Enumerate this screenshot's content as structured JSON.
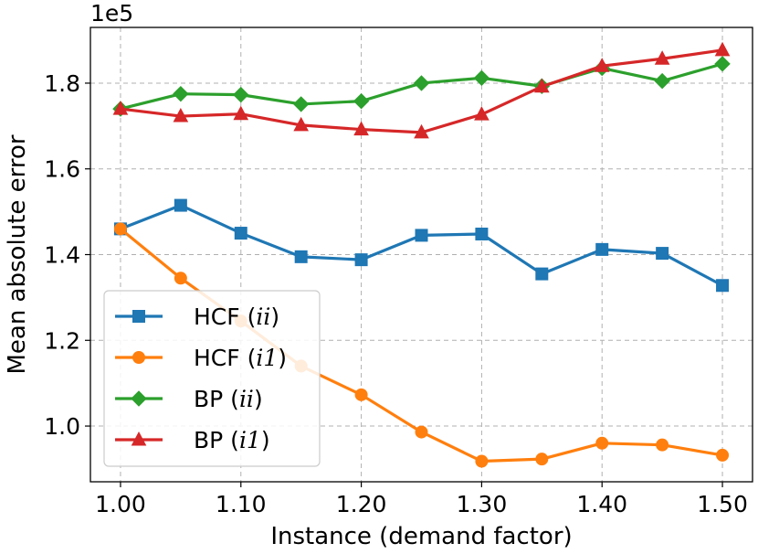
{
  "chart_data": {
    "type": "line",
    "title": "",
    "xlabel": "Instance (demand factor)",
    "ylabel": "Mean absolute error",
    "y_offset_text": "1e5",
    "xlim": [
      0.975,
      1.525
    ],
    "ylim": [
      0.87,
      1.93
    ],
    "x_ticks": [
      1.0,
      1.1,
      1.2,
      1.3,
      1.4,
      1.5
    ],
    "x_tick_labels": [
      "1.00",
      "1.10",
      "1.20",
      "1.30",
      "1.40",
      "1.50"
    ],
    "y_ticks": [
      1.0,
      1.2,
      1.4,
      1.6,
      1.8
    ],
    "y_tick_labels": [
      "1.0",
      "1.2",
      "1.4",
      "1.6",
      "1.8"
    ],
    "grid": true,
    "legend_position": "lower-left",
    "x": [
      1.0,
      1.05,
      1.1,
      1.15,
      1.2,
      1.25,
      1.3,
      1.35,
      1.4,
      1.45,
      1.5
    ],
    "series": [
      {
        "name_main": "HCF",
        "name_math": "ii",
        "color": "#1f77b4",
        "marker": "square",
        "values": [
          1.46,
          1.515,
          1.45,
          1.395,
          1.388,
          1.445,
          1.448,
          1.355,
          1.412,
          1.403,
          1.328
        ]
      },
      {
        "name_main": "HCF",
        "name_math": "i1",
        "color": "#ff7f0e",
        "marker": "circle",
        "values": [
          1.46,
          1.345,
          1.245,
          1.14,
          1.073,
          0.986,
          0.918,
          0.923,
          0.96,
          0.956,
          0.932
        ]
      },
      {
        "name_main": "BP",
        "name_math": "ii",
        "color": "#2ca02c",
        "marker": "diamond",
        "values": [
          1.74,
          1.775,
          1.773,
          1.751,
          1.758,
          1.8,
          1.812,
          1.793,
          1.835,
          1.805,
          1.845
        ]
      },
      {
        "name_main": "BP",
        "name_math": "i1",
        "color": "#d62728",
        "marker": "triangle",
        "values": [
          1.74,
          1.723,
          1.728,
          1.702,
          1.692,
          1.685,
          1.727,
          1.792,
          1.84,
          1.857,
          1.877
        ]
      }
    ]
  }
}
